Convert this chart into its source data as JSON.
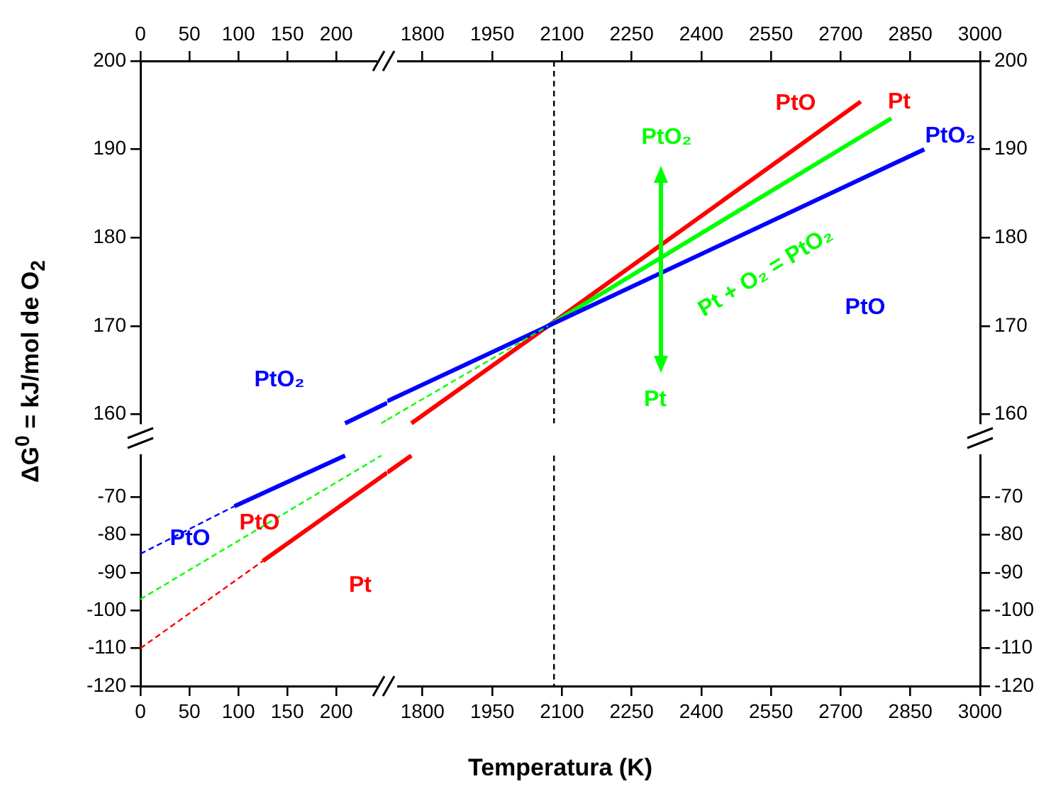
{
  "chart_data": [
    {
      "type": "line",
      "ylabel": "ΔG$^{0}$ = kJ/mol de O$_{2}$",
      "xlim": [
        0,
        252
      ],
      "xticks": [
        0,
        50,
        100,
        150,
        200
      ],
      "ylim": [
        159,
        200
      ],
      "yticks": [
        160,
        170,
        180,
        190,
        200
      ],
      "grid": false,
      "legend": false,
      "series": [
        {
          "color": "#0000ff",
          "line_style": "solid",
          "x": [
            209,
            252
          ],
          "values": [
            159,
            161.3
          ]
        },
        {
          "color": "#00ff00",
          "line_style": "dashed",
          "x": [
            246,
            252
          ],
          "values": [
            159,
            159.4
          ]
        }
      ],
      "annotations": [
        "PtO₂"
      ]
    },
    {
      "type": "line",
      "xlim": [
        1724,
        3000
      ],
      "xticks": [
        1800,
        1950,
        2100,
        2250,
        2400,
        2550,
        2700,
        2850,
        3000
      ],
      "ylim": [
        159,
        200
      ],
      "yticks": [
        160,
        170,
        180,
        190,
        200
      ],
      "grid": false,
      "legend": false,
      "series": [
        {
          "color": "#0000ff",
          "line_style": "solid",
          "x": [
            1724,
            2070,
            2880
          ],
          "values": [
            161.5,
            170,
            190
          ]
        },
        {
          "color": "#00ff00",
          "line_style": "dashed",
          "x": [
            1724,
            2070
          ],
          "values": [
            159.4,
            170
          ]
        },
        {
          "color": "#00ff00",
          "line_style": "solid",
          "x": [
            2070,
            2809
          ],
          "values": [
            170,
            193.5
          ]
        },
        {
          "color": "#ff0000",
          "line_style": "solid",
          "x": [
            1776,
            2070,
            2743
          ],
          "values": [
            159,
            170,
            195.4
          ]
        }
      ],
      "ref_lines": [
        {
          "axis": "x",
          "value": 2083,
          "color": "#000000",
          "line_style": "dashed"
        }
      ],
      "annotations": [
        "PtO",
        "Pt",
        "PtO₂",
        "PtO₂",
        "Pt",
        "Pt + O₂ = PtO₂",
        "PtO"
      ]
    },
    {
      "type": "line",
      "xlabel": "Temperatura (K)",
      "xlim": [
        0,
        252
      ],
      "xticks": [
        0,
        50,
        100,
        150,
        200
      ],
      "ylim": [
        -120,
        -59
      ],
      "yticks": [
        -120,
        -110,
        -100,
        -90,
        -80,
        -70
      ],
      "grid": false,
      "legend": false,
      "series": [
        {
          "color": "#0000ff",
          "line_style": "dashed",
          "x": [
            0,
            96
          ],
          "values": [
            -85,
            -72.4
          ]
        },
        {
          "color": "#0000ff",
          "line_style": "solid",
          "x": [
            96,
            209
          ],
          "values": [
            -72.4,
            -59
          ]
        },
        {
          "color": "#00ff00",
          "line_style": "dashed",
          "x": [
            0,
            246
          ],
          "values": [
            -97,
            -59
          ]
        },
        {
          "color": "#ff0000",
          "line_style": "dashed",
          "x": [
            0,
            125
          ],
          "values": [
            -110,
            -86.9
          ]
        },
        {
          "color": "#ff0000",
          "line_style": "solid",
          "x": [
            125,
            252
          ],
          "values": [
            -86.9,
            -63.5
          ]
        }
      ],
      "annotations": [
        "PtO",
        "PtO",
        "Pt"
      ]
    },
    {
      "type": "line",
      "xlim": [
        1724,
        3000
      ],
      "xticks": [
        1800,
        1950,
        2100,
        2250,
        2400,
        2550,
        2700,
        2850,
        3000
      ],
      "ylim": [
        -120,
        -59
      ],
      "yticks": [
        -120,
        -110,
        -100,
        -90,
        -80,
        -70
      ],
      "grid": false,
      "legend": false,
      "series": [
        {
          "color": "#ff0000",
          "line_style": "solid",
          "x": [
            1724,
            1776
          ],
          "values": [
            -63.5,
            -59
          ]
        }
      ],
      "ref_lines": [
        {
          "axis": "x",
          "value": 2083,
          "color": "#000000",
          "line_style": "dashed"
        }
      ]
    }
  ]
}
